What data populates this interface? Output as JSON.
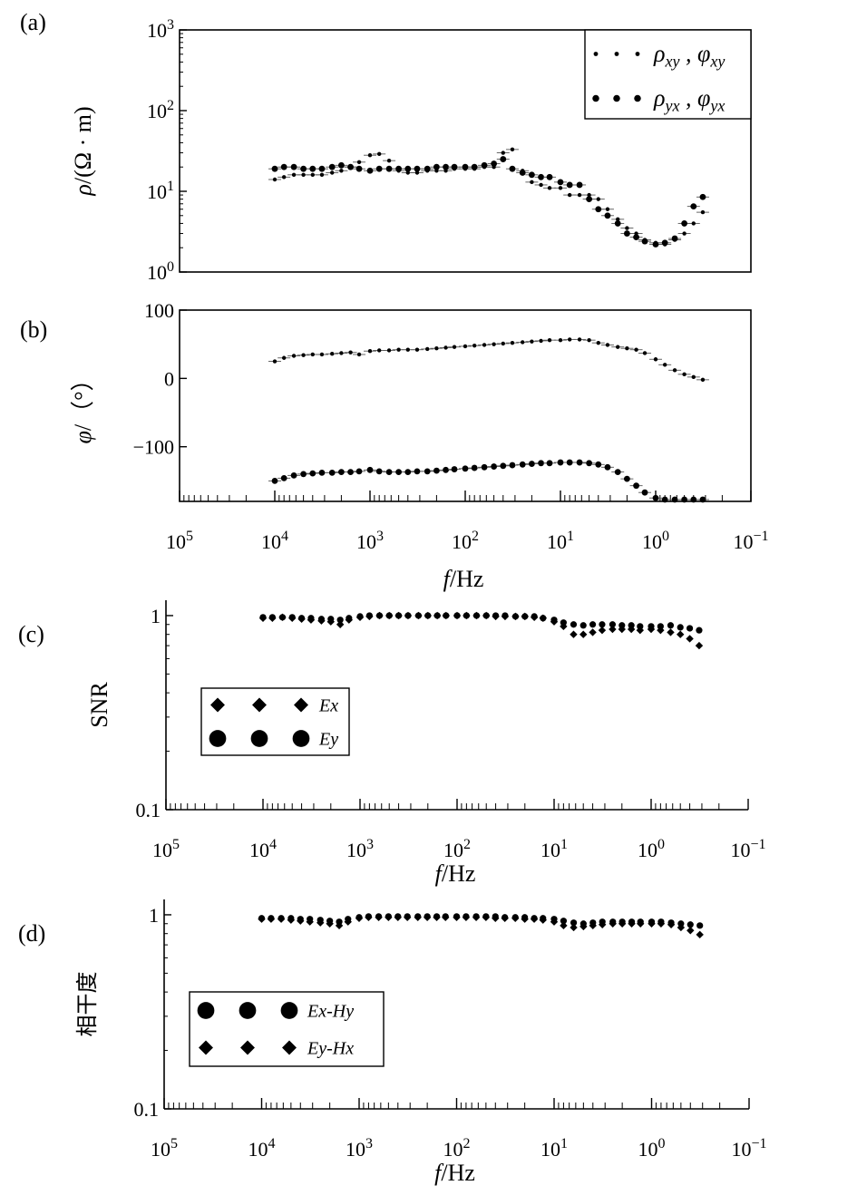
{
  "chart_data": [
    {
      "panel": "(a)",
      "type": "scatter",
      "ylabel": "ρ/(Ω · m)",
      "xlabel": "",
      "x_scale": "log",
      "x_reversed": true,
      "xlim": [
        100000,
        0.1
      ],
      "y_scale": "log",
      "ylim": [
        1,
        1000
      ],
      "y_ticks": [
        {
          "v": 1,
          "label": "10^0"
        },
        {
          "v": 10,
          "label": "10^1"
        },
        {
          "v": 100,
          "label": "10^2"
        },
        {
          "v": 1000,
          "label": "10^3"
        }
      ],
      "x_ticks": [],
      "legend": {
        "placement": "top-right",
        "entries": [
          {
            "label": "ρxy , φxy",
            "marker": "small-dot"
          },
          {
            "label": "ρyx , φyx",
            "marker": "dot"
          }
        ]
      },
      "series": [
        {
          "marker": "small-dot",
          "error_bars": true,
          "x": [
            10000,
            8000,
            6300,
            5000,
            4000,
            3200,
            2500,
            2000,
            1600,
            1300,
            1000,
            800,
            630,
            500,
            400,
            320,
            250,
            200,
            160,
            130,
            100,
            80,
            63,
            50,
            40,
            32,
            25,
            20,
            16,
            13,
            10,
            8,
            6.3,
            5,
            4,
            3.2,
            2.5,
            2,
            1.6,
            1.3,
            1,
            0.8,
            0.63,
            0.5,
            0.4,
            0.32
          ],
          "y": [
            14,
            15,
            16,
            16,
            16,
            16,
            17,
            18,
            20,
            23,
            28,
            29,
            24,
            18,
            17,
            17,
            18,
            18,
            18,
            19,
            19,
            19,
            20,
            20,
            30,
            33,
            18,
            13,
            12,
            11,
            11,
            9,
            9,
            9,
            8,
            6,
            4.5,
            3.5,
            3,
            2.5,
            2.3,
            2.2,
            2.5,
            3,
            4,
            5.5
          ]
        },
        {
          "marker": "dot",
          "error_bars": true,
          "x": [
            10000,
            8000,
            6300,
            5000,
            4000,
            3200,
            2500,
            2000,
            1600,
            1300,
            1000,
            800,
            630,
            500,
            400,
            320,
            250,
            200,
            160,
            130,
            100,
            80,
            63,
            50,
            40,
            32,
            25,
            20,
            16,
            13,
            10,
            8,
            6.3,
            5,
            4,
            3.2,
            2.5,
            2,
            1.6,
            1.3,
            1,
            0.8,
            0.63,
            0.5,
            0.4,
            0.32
          ],
          "y": [
            19,
            20,
            20,
            19,
            19,
            19,
            20,
            21,
            20,
            19,
            18,
            19,
            19,
            19,
            19,
            19,
            19,
            20,
            20,
            20,
            20,
            20,
            21,
            22,
            25,
            19,
            17,
            16,
            15,
            15,
            13,
            12,
            12,
            8,
            6,
            5,
            4,
            3,
            2.7,
            2.4,
            2.2,
            2.3,
            2.6,
            4,
            6.5,
            8.5
          ]
        }
      ]
    },
    {
      "panel": "(b)",
      "type": "scatter",
      "ylabel": "φ/（°）",
      "xlabel": "f/Hz",
      "x_scale": "log",
      "x_reversed": true,
      "xlim": [
        100000,
        0.1
      ],
      "y_scale": "linear",
      "ylim": [
        -180,
        100
      ],
      "y_ticks": [
        {
          "v": 100,
          "label": "100"
        },
        {
          "v": 0,
          "label": "0"
        },
        {
          "v": -100,
          "label": "−100"
        }
      ],
      "x_ticks": [
        {
          "v": 100000,
          "label": "10^5"
        },
        {
          "v": 10000,
          "label": "10^4"
        },
        {
          "v": 1000,
          "label": "10^3"
        },
        {
          "v": 100,
          "label": "10^2"
        },
        {
          "v": 10,
          "label": "10^1"
        },
        {
          "v": 1,
          "label": "10^0"
        },
        {
          "v": 0.1,
          "label": "10^−1"
        }
      ],
      "series": [
        {
          "marker": "small-dot",
          "error_bars": true,
          "x": [
            10000,
            8000,
            6300,
            5000,
            4000,
            3200,
            2500,
            2000,
            1600,
            1300,
            1000,
            800,
            630,
            500,
            400,
            320,
            250,
            200,
            160,
            130,
            100,
            80,
            63,
            50,
            40,
            32,
            25,
            20,
            16,
            13,
            10,
            8,
            6.3,
            5,
            4,
            3.2,
            2.5,
            2,
            1.6,
            1.3,
            1,
            0.8,
            0.63,
            0.5,
            0.4,
            0.32
          ],
          "y": [
            25,
            30,
            33,
            34,
            35,
            35,
            36,
            37,
            38,
            35,
            40,
            41,
            41,
            42,
            42,
            42,
            43,
            44,
            45,
            46,
            47,
            48,
            49,
            50,
            51,
            52,
            53,
            54,
            55,
            56,
            56,
            57,
            57,
            56,
            52,
            49,
            46,
            44,
            42,
            37,
            28,
            20,
            12,
            6,
            2,
            -2
          ]
        },
        {
          "marker": "dot",
          "error_bars": true,
          "x": [
            10000,
            8000,
            6300,
            5000,
            4000,
            3200,
            2500,
            2000,
            1600,
            1300,
            1000,
            800,
            630,
            500,
            400,
            320,
            250,
            200,
            160,
            130,
            100,
            80,
            63,
            50,
            40,
            32,
            25,
            20,
            16,
            13,
            10,
            8,
            6.3,
            5,
            4,
            3.2,
            2.5,
            2,
            1.6,
            1.3,
            1,
            0.8,
            0.63,
            0.5,
            0.4,
            0.32
          ],
          "y": [
            -150,
            -146,
            -142,
            -140,
            -139,
            -138,
            -138,
            -137,
            -137,
            -136,
            -134,
            -136,
            -137,
            -137,
            -137,
            -136,
            -136,
            -135,
            -134,
            -133,
            -132,
            -131,
            -130,
            -129,
            -128,
            -127,
            -126,
            -125,
            -124,
            -124,
            -123,
            -123,
            -123,
            -124,
            -126,
            -130,
            -137,
            -147,
            -157,
            -167,
            -175,
            -178,
            -179,
            -180,
            -180,
            -180
          ]
        }
      ]
    },
    {
      "panel": "(c)",
      "type": "scatter",
      "ylabel": "SNR",
      "xlabel": "f/Hz",
      "x_scale": "log",
      "x_reversed": true,
      "xlim": [
        100000,
        0.1
      ],
      "y_scale": "log",
      "ylim": [
        0.1,
        1.2
      ],
      "y_ticks": [
        {
          "v": 1,
          "label": "1"
        },
        {
          "v": 0.1,
          "label": "0.1"
        }
      ],
      "x_ticks": [
        {
          "v": 100000,
          "label": "10^5"
        },
        {
          "v": 10000,
          "label": "10^4"
        },
        {
          "v": 1000,
          "label": "10^3"
        },
        {
          "v": 100,
          "label": "10^2"
        },
        {
          "v": 10,
          "label": "10^1"
        },
        {
          "v": 1,
          "label": "10^0"
        },
        {
          "v": 0.1,
          "label": "10^−1"
        }
      ],
      "legend": {
        "placement": "middle-left",
        "entries": [
          {
            "label": "Ex",
            "marker": "diamond"
          },
          {
            "label": "Ey",
            "marker": "circle"
          }
        ]
      },
      "series": [
        {
          "marker": "diamond",
          "x": [
            10000,
            8000,
            6300,
            5000,
            4000,
            3200,
            2500,
            2000,
            1600,
            1300,
            1000,
            800,
            630,
            500,
            400,
            320,
            250,
            200,
            160,
            130,
            100,
            80,
            63,
            50,
            40,
            32,
            25,
            20,
            16,
            13,
            10,
            8,
            6.3,
            5,
            4,
            3.2,
            2.5,
            2,
            1.6,
            1.3,
            1,
            0.8,
            0.63,
            0.5,
            0.4,
            0.32
          ],
          "y": [
            0.97,
            0.97,
            0.98,
            0.97,
            0.96,
            0.95,
            0.94,
            0.93,
            0.9,
            0.95,
            0.98,
            0.99,
            1.0,
            1.0,
            1.0,
            1.0,
            1.0,
            1.0,
            1.0,
            1.0,
            1.0,
            1.0,
            1.0,
            1.0,
            0.99,
            0.99,
            0.99,
            0.99,
            0.98,
            0.97,
            0.93,
            0.88,
            0.8,
            0.8,
            0.82,
            0.84,
            0.85,
            0.85,
            0.85,
            0.84,
            0.85,
            0.84,
            0.82,
            0.8,
            0.76,
            0.7
          ]
        },
        {
          "marker": "circle",
          "x": [
            10000,
            8000,
            6300,
            5000,
            4000,
            3200,
            2500,
            2000,
            1600,
            1300,
            1000,
            800,
            630,
            500,
            400,
            320,
            250,
            200,
            160,
            130,
            100,
            80,
            63,
            50,
            40,
            32,
            25,
            20,
            16,
            13,
            10,
            8,
            6.3,
            5,
            4,
            3.2,
            2.5,
            2,
            1.6,
            1.3,
            1,
            0.8,
            0.63,
            0.5,
            0.4,
            0.32
          ],
          "y": [
            0.98,
            0.98,
            0.98,
            0.98,
            0.97,
            0.97,
            0.96,
            0.96,
            0.95,
            0.97,
            0.99,
            1.0,
            1.0,
            1.0,
            1.0,
            1.0,
            1.0,
            1.0,
            1.0,
            1.0,
            1.0,
            1.0,
            1.0,
            1.0,
            1.0,
            1.0,
            0.99,
            0.99,
            0.99,
            0.97,
            0.95,
            0.92,
            0.9,
            0.89,
            0.9,
            0.9,
            0.9,
            0.89,
            0.89,
            0.88,
            0.88,
            0.88,
            0.89,
            0.87,
            0.86,
            0.84
          ]
        }
      ]
    },
    {
      "panel": "(d)",
      "type": "scatter",
      "ylabel": "相干度",
      "xlabel": "f/Hz",
      "x_scale": "log",
      "x_reversed": true,
      "xlim": [
        100000,
        0.1
      ],
      "y_scale": "log",
      "ylim": [
        0.1,
        1.2
      ],
      "y_ticks": [
        {
          "v": 1,
          "label": "1"
        },
        {
          "v": 0.1,
          "label": "0.1"
        }
      ],
      "x_ticks": [
        {
          "v": 100000,
          "label": "10^5"
        },
        {
          "v": 10000,
          "label": "10^4"
        },
        {
          "v": 1000,
          "label": "10^3"
        },
        {
          "v": 100,
          "label": "10^2"
        },
        {
          "v": 10,
          "label": "10^1"
        },
        {
          "v": 1,
          "label": "10^0"
        },
        {
          "v": 0.1,
          "label": "10^−1"
        }
      ],
      "legend": {
        "placement": "middle-left",
        "entries": [
          {
            "label": "Ex-Hy",
            "marker": "circle"
          },
          {
            "label": "Ey-Hx",
            "marker": "diamond"
          }
        ]
      },
      "series": [
        {
          "marker": "circle",
          "x": [
            10000,
            8000,
            6300,
            5000,
            4000,
            3200,
            2500,
            2000,
            1600,
            1300,
            1000,
            800,
            630,
            500,
            400,
            320,
            250,
            200,
            160,
            130,
            100,
            80,
            63,
            50,
            40,
            32,
            25,
            20,
            16,
            13,
            10,
            8,
            6.3,
            5,
            4,
            3.2,
            2.5,
            2,
            1.6,
            1.3,
            1,
            0.8,
            0.63,
            0.5,
            0.4,
            0.32
          ],
          "y": [
            0.96,
            0.96,
            0.96,
            0.96,
            0.95,
            0.95,
            0.94,
            0.93,
            0.92,
            0.95,
            0.97,
            0.98,
            0.98,
            0.98,
            0.98,
            0.98,
            0.98,
            0.98,
            0.98,
            0.98,
            0.98,
            0.98,
            0.98,
            0.98,
            0.98,
            0.97,
            0.97,
            0.97,
            0.96,
            0.96,
            0.95,
            0.93,
            0.91,
            0.9,
            0.91,
            0.92,
            0.92,
            0.92,
            0.92,
            0.92,
            0.92,
            0.92,
            0.91,
            0.9,
            0.89,
            0.88
          ]
        },
        {
          "marker": "diamond",
          "x": [
            10000,
            8000,
            6300,
            5000,
            4000,
            3200,
            2500,
            2000,
            1600,
            1300,
            1000,
            800,
            630,
            500,
            400,
            320,
            250,
            200,
            160,
            130,
            100,
            80,
            63,
            50,
            40,
            32,
            25,
            20,
            16,
            13,
            10,
            8,
            6.3,
            5,
            4,
            3.2,
            2.5,
            2,
            1.6,
            1.3,
            1,
            0.8,
            0.63,
            0.5,
            0.4,
            0.32
          ],
          "y": [
            0.95,
            0.95,
            0.95,
            0.94,
            0.93,
            0.92,
            0.91,
            0.9,
            0.88,
            0.92,
            0.96,
            0.97,
            0.97,
            0.97,
            0.97,
            0.97,
            0.97,
            0.97,
            0.97,
            0.97,
            0.97,
            0.97,
            0.97,
            0.97,
            0.96,
            0.96,
            0.96,
            0.95,
            0.95,
            0.94,
            0.92,
            0.88,
            0.86,
            0.87,
            0.88,
            0.89,
            0.9,
            0.9,
            0.9,
            0.9,
            0.9,
            0.9,
            0.89,
            0.86,
            0.83,
            0.79
          ]
        }
      ]
    }
  ]
}
